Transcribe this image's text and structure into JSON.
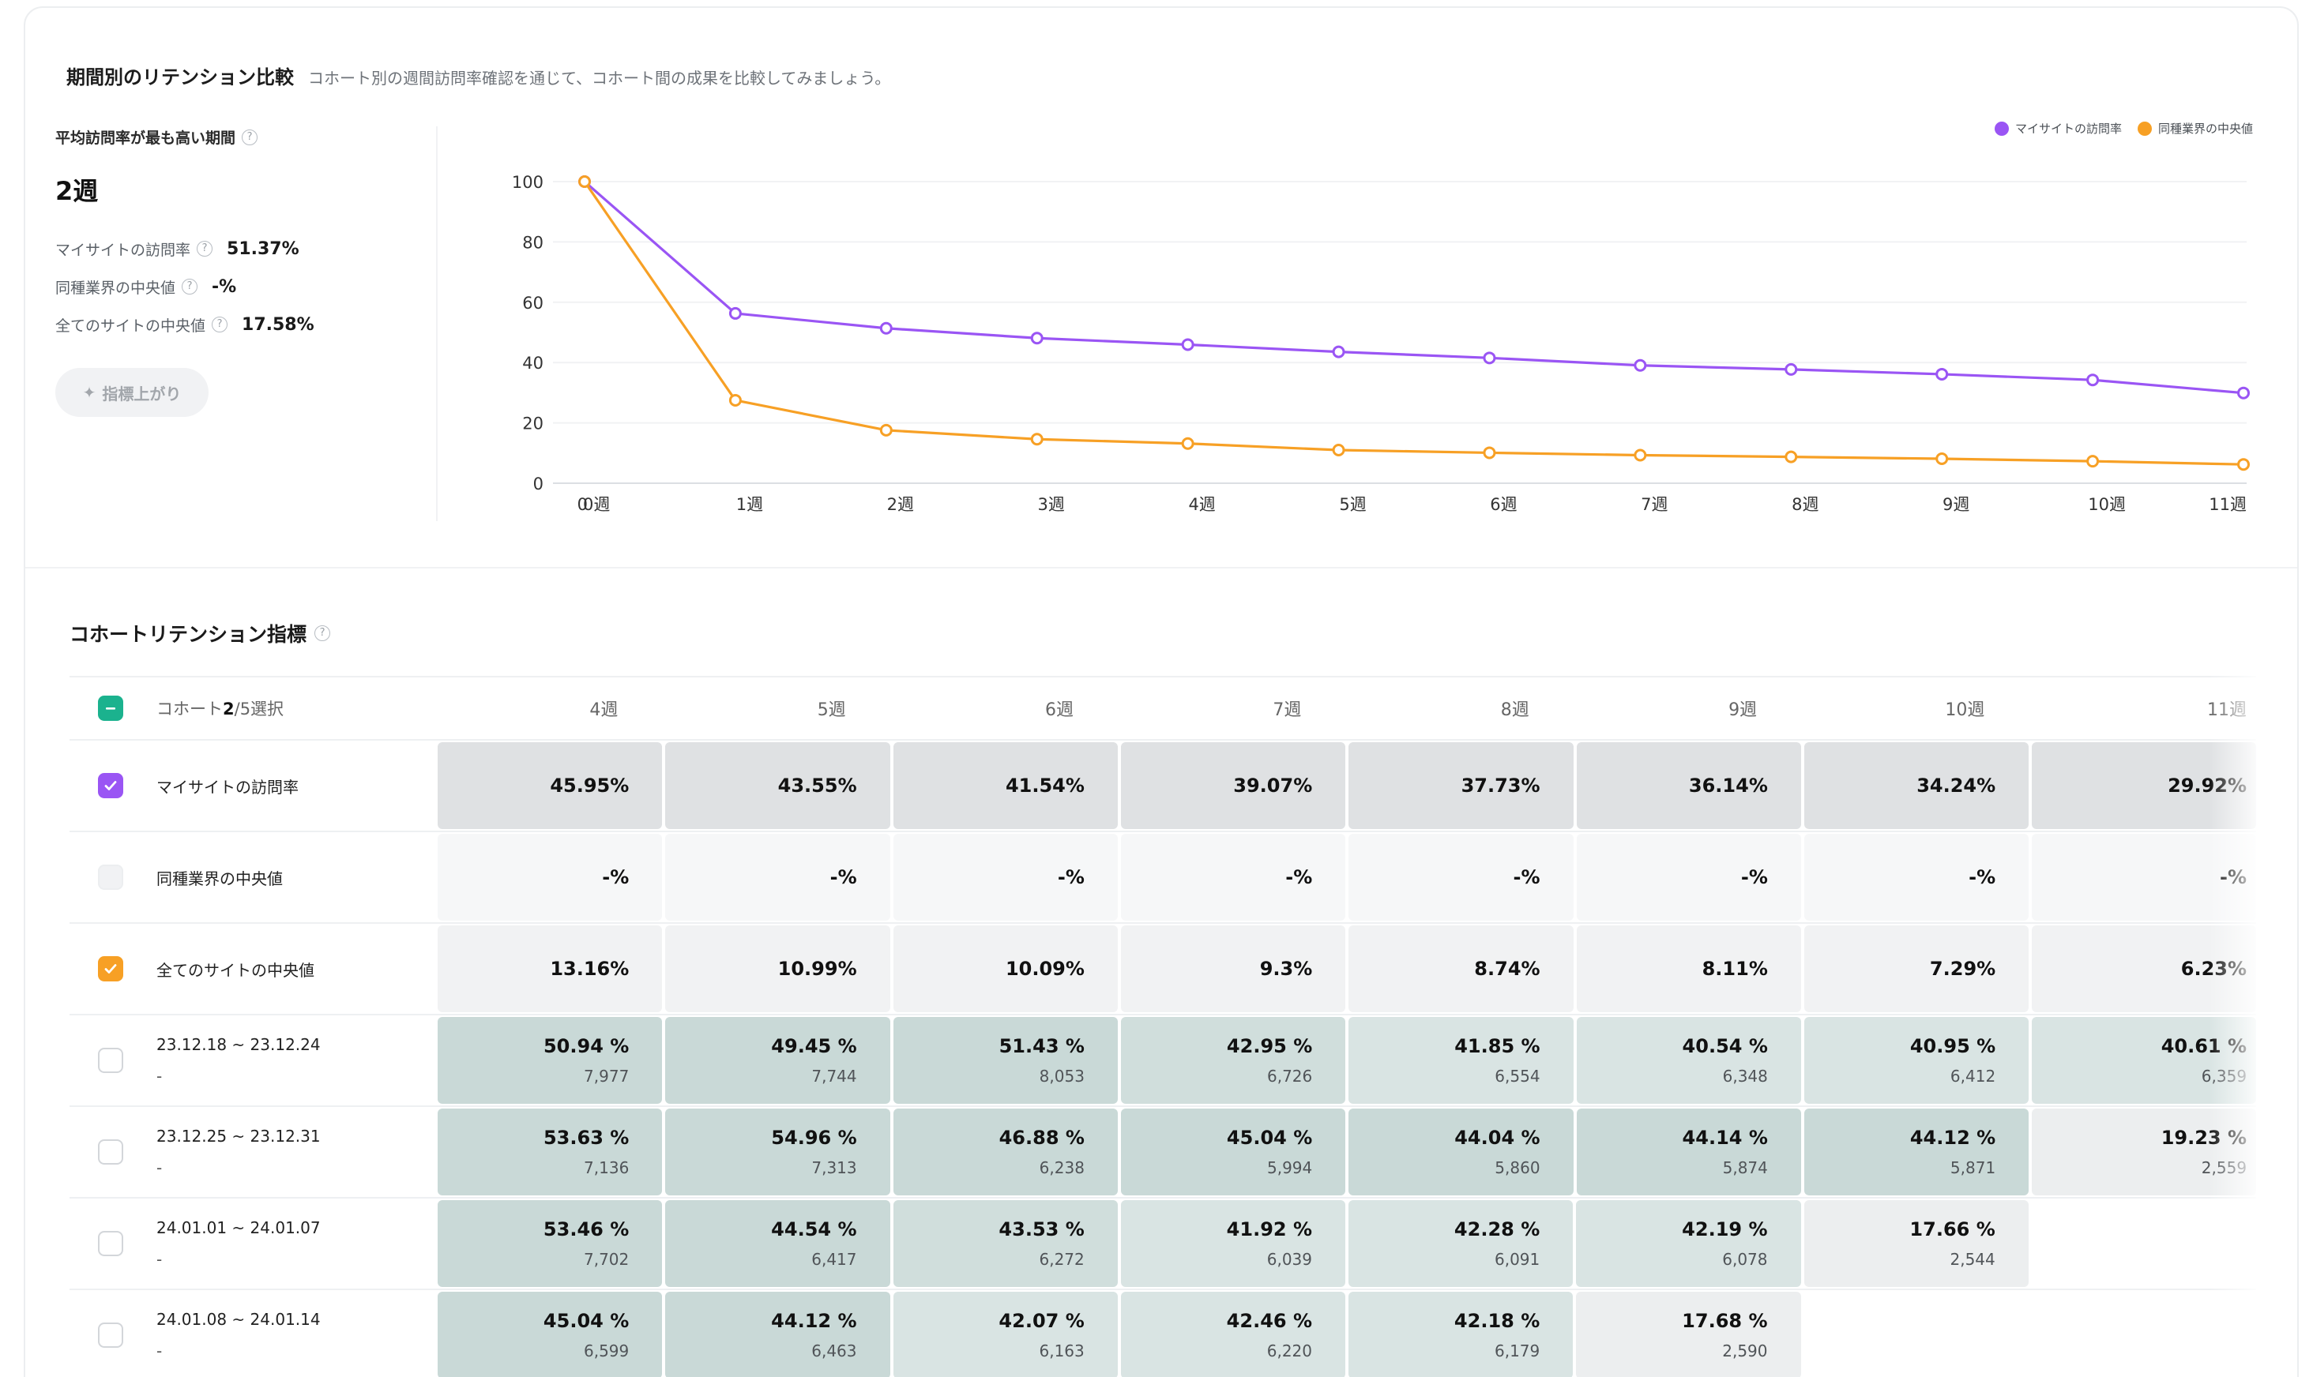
{
  "section": {
    "title": "期間別のリテンション比較",
    "description": "コホート別の週間訪問率確認を通じて、コホート間の成果を比較してみましょう。"
  },
  "summary": {
    "peak_label": "平均訪問率が最も高い期間",
    "peak_value": "2週",
    "stats": [
      {
        "label": "マイサイトの訪問率",
        "value": "51.37%"
      },
      {
        "label": "同種業界の中央値",
        "value": "-%"
      },
      {
        "label": "全てのサイトの中央値",
        "value": "17.58%"
      }
    ],
    "insight_button": "指標上がり"
  },
  "legend": {
    "my_site": "マイサイトの訪問率",
    "industry": "同種業界の中央値",
    "colors": {
      "my_site": "#9a55f4",
      "industry": "#f7a025"
    }
  },
  "chart_data": {
    "type": "line",
    "categories": [
      "0週",
      "1週",
      "2週",
      "3週",
      "4週",
      "5週",
      "6週",
      "7週",
      "8週",
      "9週",
      "10週",
      "11週"
    ],
    "x_origin_label": "0",
    "ylim": [
      0,
      100
    ],
    "yticks": [
      0,
      20,
      40,
      60,
      80,
      100
    ],
    "grid": true,
    "legend_position": "top-right",
    "series": [
      {
        "name": "マイサイトの訪問率",
        "color": "#9a55f4",
        "values": [
          100,
          56.3,
          51.37,
          48.1,
          45.95,
          43.55,
          41.54,
          39.07,
          37.73,
          36.14,
          34.24,
          29.92
        ]
      },
      {
        "name": "同種業界の中央値",
        "color": "#f7a025",
        "values": [
          100,
          27.5,
          17.58,
          14.6,
          13.16,
          10.99,
          10.09,
          9.3,
          8.74,
          8.11,
          7.29,
          6.23
        ]
      }
    ]
  },
  "table": {
    "title": "コホートリテンション指標",
    "header_label_prefix": "コホート",
    "header_selected": "2",
    "header_label_suffix": "/5選択",
    "columns": [
      "4週",
      "5週",
      "6週",
      "7週",
      "8週",
      "9週",
      "10週",
      "11週"
    ],
    "rows": [
      {
        "label": "マイサイトの訪問率",
        "values": [
          "45.95%",
          "43.55%",
          "41.54%",
          "39.07%",
          "37.73%",
          "36.14%",
          "34.24%",
          "29.92%"
        ]
      },
      {
        "label": "同種業界の中央値",
        "values": [
          "-%",
          "-%",
          "-%",
          "-%",
          "-%",
          "-%",
          "-%",
          "-%"
        ]
      },
      {
        "label": "全てのサイトの中央値",
        "values": [
          "13.16%",
          "10.99%",
          "10.09%",
          "9.3%",
          "8.74%",
          "8.11%",
          "7.29%",
          "6.23%"
        ]
      },
      {
        "label": "23.12.18 ~ 23.12.24",
        "sub": "-",
        "values": [
          "50.94 %",
          "49.45 %",
          "51.43 %",
          "42.95 %",
          "41.85 %",
          "40.54 %",
          "40.95 %",
          "40.61 %"
        ],
        "counts": [
          "7,977",
          "7,744",
          "8,053",
          "6,726",
          "6,554",
          "6,348",
          "6,412",
          "6,359"
        ]
      },
      {
        "label": "23.12.25 ~ 23.12.31",
        "sub": "-",
        "values": [
          "53.63 %",
          "54.96 %",
          "46.88 %",
          "45.04 %",
          "44.04 %",
          "44.14 %",
          "44.12 %",
          "19.23 %"
        ],
        "counts": [
          "7,136",
          "7,313",
          "6,238",
          "5,994",
          "5,860",
          "5,874",
          "5,871",
          "2,559"
        ]
      },
      {
        "label": "24.01.01 ~ 24.01.07",
        "sub": "-",
        "values": [
          "53.46 %",
          "44.54 %",
          "43.53 %",
          "41.92 %",
          "42.28 %",
          "42.19 %",
          "17.66 %"
        ],
        "counts": [
          "7,702",
          "6,417",
          "6,272",
          "6,039",
          "6,091",
          "6,078",
          "2,544"
        ]
      },
      {
        "label": "24.01.08 ~ 24.01.14",
        "sub": "-",
        "values": [
          "45.04 %",
          "44.12 %",
          "42.07 %",
          "42.46 %",
          "42.18 %",
          "17.68 %"
        ],
        "counts": [
          "6,599",
          "6,463",
          "6,163",
          "6,220",
          "6,179",
          "2,590"
        ]
      }
    ]
  }
}
